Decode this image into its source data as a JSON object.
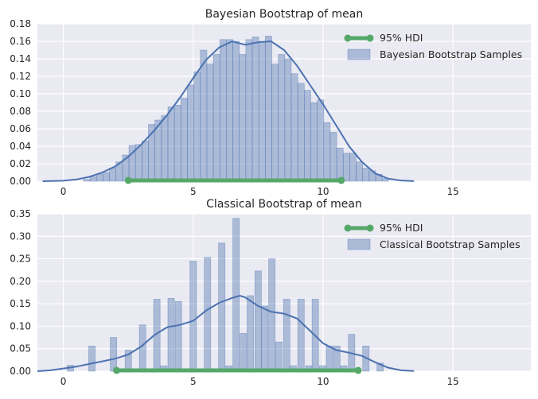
{
  "colors": {
    "axes_bg": "#eaeaf2",
    "series": "#4c72b0",
    "hdi": "#55a868"
  },
  "chart_data": [
    {
      "type": "bar",
      "title": "Bayesian Bootstrap of mean",
      "xlim": [
        -1,
        18
      ],
      "ylim": [
        0,
        0.18
      ],
      "x_ticks": [
        0,
        5,
        10,
        15
      ],
      "x_tick_labels": [
        "0",
        "5",
        "10",
        "15"
      ],
      "y_ticks": [
        0,
        0.02,
        0.04,
        0.06,
        0.08,
        0.1,
        0.12,
        0.14,
        0.16,
        0.18
      ],
      "y_tick_labels": [
        "0.00",
        "0.02",
        "0.04",
        "0.06",
        "0.08",
        "0.10",
        "0.12",
        "0.14",
        "0.16",
        "0.18"
      ],
      "grid": true,
      "legend_position": "top-right",
      "legend": [
        {
          "label": "95% HDI",
          "marker": "line"
        },
        {
          "label": "Bayesian Bootstrap Samples",
          "marker": "patch"
        }
      ],
      "histogram": {
        "bin_width": 0.25,
        "bins": [
          {
            "x": 0.9,
            "y": 0.002
          },
          {
            "x": 1.15,
            "y": 0.005
          },
          {
            "x": 1.4,
            "y": 0.008
          },
          {
            "x": 1.65,
            "y": 0.01
          },
          {
            "x": 1.9,
            "y": 0.015
          },
          {
            "x": 2.15,
            "y": 0.022
          },
          {
            "x": 2.4,
            "y": 0.03
          },
          {
            "x": 2.65,
            "y": 0.041
          },
          {
            "x": 2.9,
            "y": 0.042
          },
          {
            "x": 3.15,
            "y": 0.046
          },
          {
            "x": 3.4,
            "y": 0.065
          },
          {
            "x": 3.65,
            "y": 0.07
          },
          {
            "x": 3.9,
            "y": 0.075
          },
          {
            "x": 4.15,
            "y": 0.085
          },
          {
            "x": 4.4,
            "y": 0.087
          },
          {
            "x": 4.65,
            "y": 0.095
          },
          {
            "x": 4.9,
            "y": 0.11
          },
          {
            "x": 5.15,
            "y": 0.125
          },
          {
            "x": 5.4,
            "y": 0.15
          },
          {
            "x": 5.65,
            "y": 0.134
          },
          {
            "x": 5.9,
            "y": 0.145
          },
          {
            "x": 6.15,
            "y": 0.162
          },
          {
            "x": 6.4,
            "y": 0.162
          },
          {
            "x": 6.65,
            "y": 0.16
          },
          {
            "x": 6.9,
            "y": 0.145
          },
          {
            "x": 7.15,
            "y": 0.162
          },
          {
            "x": 7.4,
            "y": 0.165
          },
          {
            "x": 7.65,
            "y": 0.16
          },
          {
            "x": 7.9,
            "y": 0.166
          },
          {
            "x": 8.15,
            "y": 0.134
          },
          {
            "x": 8.4,
            "y": 0.145
          },
          {
            "x": 8.65,
            "y": 0.14
          },
          {
            "x": 8.9,
            "y": 0.123
          },
          {
            "x": 9.15,
            "y": 0.112
          },
          {
            "x": 9.4,
            "y": 0.104
          },
          {
            "x": 9.65,
            "y": 0.09
          },
          {
            "x": 9.9,
            "y": 0.093
          },
          {
            "x": 10.15,
            "y": 0.067
          },
          {
            "x": 10.4,
            "y": 0.056
          },
          {
            "x": 10.65,
            "y": 0.038
          },
          {
            "x": 10.9,
            "y": 0.032
          },
          {
            "x": 11.15,
            "y": 0.032
          },
          {
            "x": 11.4,
            "y": 0.022
          },
          {
            "x": 11.65,
            "y": 0.015
          },
          {
            "x": 11.9,
            "y": 0.012
          },
          {
            "x": 12.15,
            "y": 0.008
          },
          {
            "x": 12.4,
            "y": 0.003
          }
        ]
      },
      "kde": {
        "x": [
          -0.8,
          0.0,
          0.5,
          1.0,
          1.5,
          2.0,
          2.5,
          3.0,
          3.5,
          4.0,
          4.5,
          5.0,
          5.5,
          6.0,
          6.5,
          7.0,
          7.5,
          8.0,
          8.5,
          9.0,
          9.5,
          10.0,
          10.5,
          11.0,
          11.5,
          12.0,
          12.5,
          13.0,
          13.5
        ],
        "y": [
          0.0,
          0.0005,
          0.002,
          0.005,
          0.01,
          0.017,
          0.028,
          0.042,
          0.058,
          0.076,
          0.096,
          0.118,
          0.139,
          0.153,
          0.16,
          0.156,
          0.159,
          0.16,
          0.15,
          0.132,
          0.11,
          0.088,
          0.064,
          0.04,
          0.022,
          0.009,
          0.003,
          0.0008,
          0.0001
        ]
      },
      "hdi": [
        2.5,
        10.7
      ]
    },
    {
      "type": "bar",
      "title": "Classical Bootstrap of mean",
      "xlim": [
        -1,
        18
      ],
      "ylim": [
        0,
        0.35
      ],
      "x_ticks": [
        0,
        5,
        10,
        15
      ],
      "x_tick_labels": [
        "0",
        "5",
        "10",
        "15"
      ],
      "y_ticks": [
        0,
        0.05,
        0.1,
        0.15,
        0.2,
        0.25,
        0.3,
        0.35
      ],
      "y_tick_labels": [
        "0.00",
        "0.05",
        "0.10",
        "0.15",
        "0.20",
        "0.25",
        "0.30",
        "0.35"
      ],
      "grid": true,
      "legend_position": "top-right",
      "legend": [
        {
          "label": "95% HDI",
          "marker": "line"
        },
        {
          "label": "Classical Bootstrap Samples",
          "marker": "patch"
        }
      ],
      "histogram": {
        "bin_width": 0.25,
        "bins": [
          {
            "x": 0.27,
            "y": 0.013
          },
          {
            "x": 1.1,
            "y": 0.056
          },
          {
            "x": 1.93,
            "y": 0.075
          },
          {
            "x": 2.5,
            "y": 0.047
          },
          {
            "x": 3.05,
            "y": 0.103
          },
          {
            "x": 3.6,
            "y": 0.16
          },
          {
            "x": 3.87,
            "y": 0.012
          },
          {
            "x": 4.15,
            "y": 0.162
          },
          {
            "x": 4.43,
            "y": 0.155
          },
          {
            "x": 5.0,
            "y": 0.245
          },
          {
            "x": 5.55,
            "y": 0.253
          },
          {
            "x": 6.1,
            "y": 0.285
          },
          {
            "x": 6.37,
            "y": 0.012
          },
          {
            "x": 6.65,
            "y": 0.34
          },
          {
            "x": 6.93,
            "y": 0.084
          },
          {
            "x": 7.2,
            "y": 0.168
          },
          {
            "x": 7.5,
            "y": 0.223
          },
          {
            "x": 7.75,
            "y": 0.145
          },
          {
            "x": 8.03,
            "y": 0.25
          },
          {
            "x": 8.3,
            "y": 0.065
          },
          {
            "x": 8.6,
            "y": 0.16
          },
          {
            "x": 8.85,
            "y": 0.012
          },
          {
            "x": 9.15,
            "y": 0.16
          },
          {
            "x": 9.45,
            "y": 0.012
          },
          {
            "x": 9.7,
            "y": 0.16
          },
          {
            "x": 9.98,
            "y": 0.012
          },
          {
            "x": 10.25,
            "y": 0.056
          },
          {
            "x": 10.53,
            "y": 0.056
          },
          {
            "x": 10.8,
            "y": 0.012
          },
          {
            "x": 11.1,
            "y": 0.082
          },
          {
            "x": 11.65,
            "y": 0.056
          },
          {
            "x": 12.2,
            "y": 0.018
          }
        ]
      },
      "kde": {
        "x": [
          -1.0,
          -0.5,
          0.0,
          0.5,
          1.0,
          1.5,
          2.0,
          2.5,
          3.0,
          3.5,
          4.0,
          4.5,
          5.0,
          5.5,
          6.0,
          6.5,
          6.8,
          7.0,
          7.5,
          8.0,
          8.5,
          9.0,
          9.5,
          10.0,
          10.5,
          11.0,
          11.5,
          12.0,
          12.5,
          13.0,
          13.5
        ],
        "y": [
          0.0,
          0.002,
          0.006,
          0.01,
          0.016,
          0.022,
          0.028,
          0.037,
          0.055,
          0.08,
          0.098,
          0.103,
          0.112,
          0.135,
          0.152,
          0.163,
          0.168,
          0.164,
          0.145,
          0.132,
          0.128,
          0.117,
          0.09,
          0.062,
          0.047,
          0.041,
          0.034,
          0.02,
          0.008,
          0.002,
          0.0005
        ]
      },
      "hdi": [
        2.05,
        11.35
      ]
    }
  ]
}
